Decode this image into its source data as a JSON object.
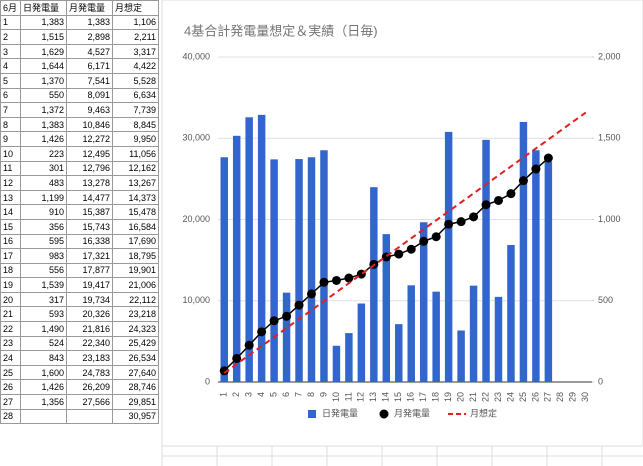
{
  "table": {
    "header": [
      "6月",
      "日発電量",
      "月発電量",
      "月想定"
    ],
    "rows": [
      [
        "1",
        "1,383",
        "1,383",
        "1,106"
      ],
      [
        "2",
        "1,515",
        "2,898",
        "2,211"
      ],
      [
        "3",
        "1,629",
        "4,527",
        "3,317"
      ],
      [
        "4",
        "1,644",
        "6,171",
        "4,422"
      ],
      [
        "5",
        "1,370",
        "7,541",
        "5,528"
      ],
      [
        "6",
        "550",
        "8,091",
        "6,634"
      ],
      [
        "7",
        "1,372",
        "9,463",
        "7,739"
      ],
      [
        "8",
        "1,383",
        "10,846",
        "8,845"
      ],
      [
        "9",
        "1,426",
        "12,272",
        "9,950"
      ],
      [
        "10",
        "223",
        "12,495",
        "11,056"
      ],
      [
        "11",
        "301",
        "12,796",
        "12,162"
      ],
      [
        "12",
        "483",
        "13,278",
        "13,267"
      ],
      [
        "13",
        "1,199",
        "14,477",
        "14,373"
      ],
      [
        "14",
        "910",
        "15,387",
        "15,478"
      ],
      [
        "15",
        "356",
        "15,743",
        "16,584"
      ],
      [
        "16",
        "595",
        "16,338",
        "17,690"
      ],
      [
        "17",
        "983",
        "17,321",
        "18,795"
      ],
      [
        "18",
        "556",
        "17,877",
        "19,901"
      ],
      [
        "19",
        "1,539",
        "19,417",
        "21,006"
      ],
      [
        "20",
        "317",
        "19,734",
        "22,112"
      ],
      [
        "21",
        "593",
        "20,326",
        "23,218"
      ],
      [
        "22",
        "1,490",
        "21,816",
        "24,323"
      ],
      [
        "23",
        "524",
        "22,340",
        "25,429"
      ],
      [
        "24",
        "843",
        "23,183",
        "26,534"
      ],
      [
        "25",
        "1,600",
        "24,783",
        "27,640"
      ],
      [
        "26",
        "1,426",
        "26,209",
        "28,746"
      ],
      [
        "27",
        "1,356",
        "27,566",
        "29,851"
      ],
      [
        "28",
        null,
        null,
        "30,957"
      ]
    ]
  },
  "chart_data": {
    "type": "combo",
    "title": "4基合計発電量想定＆実績（日毎)",
    "categories": [
      "1",
      "2",
      "3",
      "4",
      "5",
      "6",
      "7",
      "8",
      "9",
      "10",
      "11",
      "12",
      "13",
      "14",
      "15",
      "16",
      "17",
      "18",
      "19",
      "20",
      "21",
      "22",
      "23",
      "24",
      "25",
      "26",
      "27",
      "28",
      "29",
      "30"
    ],
    "ylim": [
      0,
      40000
    ],
    "yticks": [
      0,
      {
        "value": 10000,
        "label": "10,000"
      },
      {
        "value": 20000,
        "label": "20,000"
      },
      {
        "value": 30000,
        "label": "30,000"
      },
      {
        "value": 40000,
        "label": "40,000"
      }
    ],
    "y2lim": [
      0,
      2000
    ],
    "y2ticks": [
      0,
      500,
      {
        "value": 1000,
        "label": "1,000"
      },
      {
        "value": 1500,
        "label": "1,500"
      },
      {
        "value": 2000,
        "label": "2,000"
      }
    ],
    "grid": true,
    "legend": "bottom",
    "series": [
      {
        "name": "日発電量",
        "kind": "bar",
        "axis": "y2",
        "color": "#3366cc",
        "values": [
          1383,
          1515,
          1629,
          1644,
          1370,
          550,
          1372,
          1383,
          1426,
          223,
          301,
          483,
          1199,
          910,
          356,
          595,
          983,
          556,
          1539,
          317,
          593,
          1490,
          524,
          843,
          1600,
          1426,
          1356,
          null,
          null,
          null
        ]
      },
      {
        "name": "月発電量",
        "kind": "line",
        "color": "#000000",
        "values": [
          1383,
          2898,
          4527,
          6171,
          7541,
          8091,
          9463,
          10846,
          12272,
          12495,
          12796,
          13278,
          14477,
          15387,
          15743,
          16338,
          17321,
          17877,
          19417,
          19734,
          20326,
          21816,
          22340,
          23183,
          24783,
          26209,
          27566,
          null,
          null,
          null
        ]
      },
      {
        "name": "月想定",
        "kind": "dashed",
        "color": "#e02020",
        "values": [
          1106,
          2211,
          3317,
          4422,
          5528,
          6634,
          7739,
          8845,
          9950,
          11056,
          12162,
          13267,
          14373,
          15478,
          16584,
          17690,
          18795,
          19901,
          21006,
          22112,
          23218,
          24323,
          25429,
          26534,
          27640,
          28746,
          29851,
          30957,
          32062,
          33168
        ]
      }
    ]
  }
}
